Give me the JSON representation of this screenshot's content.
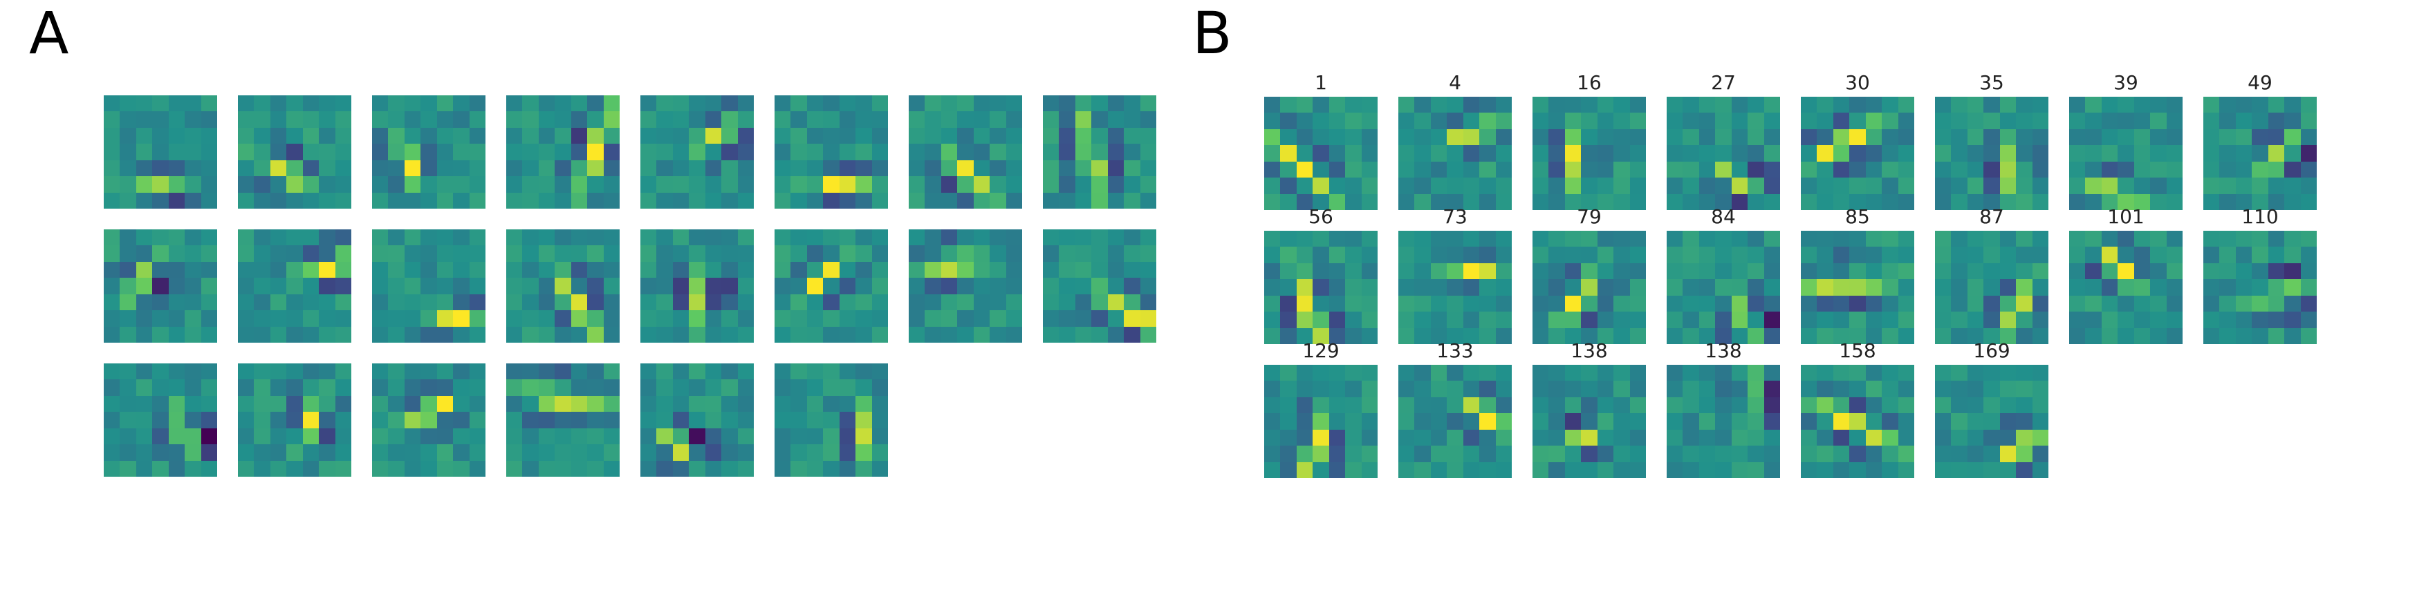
{
  "panels": {
    "a": {
      "label": "A",
      "rows": [
        8,
        8,
        6
      ]
    },
    "b": {
      "label": "B",
      "titles": [
        "1",
        "4",
        "16",
        "27",
        "30",
        "35",
        "39",
        "49",
        "56",
        "73",
        "79",
        "84",
        "85",
        "87",
        "101",
        "110",
        "129",
        "133",
        "138",
        "138",
        "158",
        "169"
      ]
    }
  },
  "colormap": {
    "name": "viridis",
    "stops": [
      "#440154",
      "#3b528b",
      "#21918c",
      "#5ec962",
      "#fde725"
    ]
  }
}
